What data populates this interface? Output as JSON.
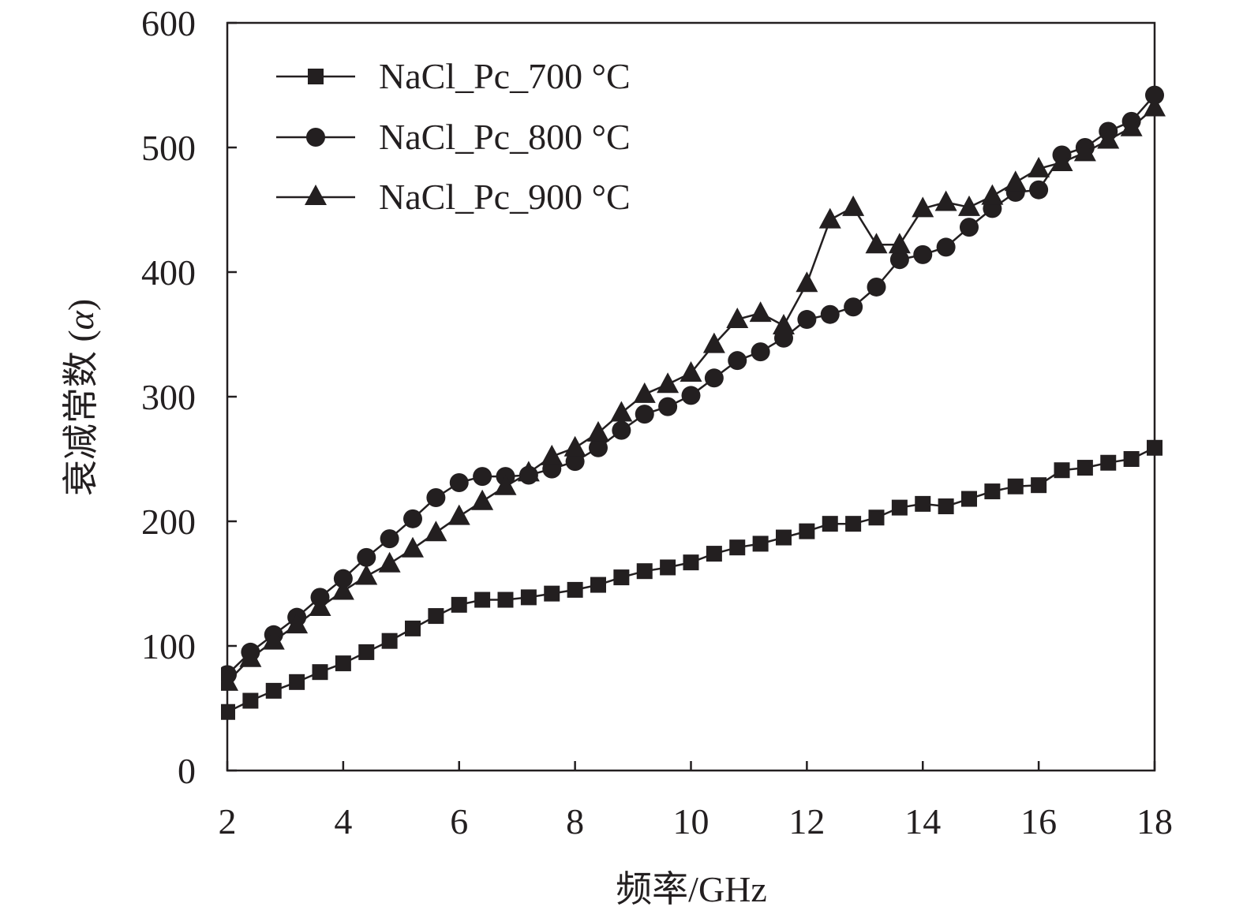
{
  "chart_data": {
    "type": "line",
    "xlabel": "频率/GHz",
    "ylabel": "衰减常数 (",
    "ylabel_symbol": "α",
    "ylabel_close": ")",
    "xlim": [
      2,
      18
    ],
    "ylim": [
      0,
      600
    ],
    "xticks": [
      2,
      4,
      6,
      8,
      10,
      12,
      14,
      16,
      18
    ],
    "yticks": [
      0,
      100,
      200,
      300,
      400,
      500,
      600
    ],
    "grid": false,
    "legend_position": "top-left",
    "series": [
      {
        "name": "NaCl_Pc_700 °C",
        "marker": "square",
        "color": "#231f20",
        "x": [
          2,
          2.4,
          2.8,
          3.2,
          3.6,
          4,
          4.4,
          4.8,
          5.2,
          5.6,
          6,
          6.4,
          6.8,
          7.2,
          7.6,
          8,
          8.4,
          8.8,
          9.2,
          9.6,
          10,
          10.4,
          10.8,
          11.2,
          11.6,
          12,
          12.4,
          12.8,
          13.2,
          13.6,
          14,
          14.4,
          14.8,
          15.2,
          15.6,
          16,
          16.4,
          16.8,
          17.2,
          17.6,
          18
        ],
        "y": [
          47,
          56,
          64,
          71,
          79,
          86,
          95,
          104,
          114,
          124,
          133,
          137,
          137,
          139,
          142,
          145,
          149,
          155,
          160,
          163,
          167,
          174,
          179,
          182,
          187,
          192,
          198,
          198,
          203,
          211,
          214,
          212,
          218,
          224,
          228,
          229,
          241,
          243,
          247,
          250,
          259
        ]
      },
      {
        "name": "NaCl_Pc_800 °C",
        "marker": "circle",
        "color": "#231f20",
        "x": [
          2,
          2.4,
          2.8,
          3.2,
          3.6,
          4,
          4.4,
          4.8,
          5.2,
          5.6,
          6,
          6.4,
          6.8,
          7.2,
          7.6,
          8,
          8.4,
          8.8,
          9.2,
          9.6,
          10,
          10.4,
          10.8,
          11.2,
          11.6,
          12,
          12.4,
          12.8,
          13.2,
          13.6,
          14,
          14.4,
          14.8,
          15.2,
          15.6,
          16,
          16.4,
          16.8,
          17.2,
          17.6,
          18
        ],
        "y": [
          77,
          95,
          109,
          123,
          139,
          154,
          171,
          186,
          202,
          219,
          231,
          236,
          236,
          237,
          242,
          248,
          259,
          273,
          286,
          292,
          301,
          315,
          329,
          336,
          347,
          362,
          366,
          372,
          388,
          410,
          414,
          420,
          436,
          451,
          464,
          466,
          494,
          500,
          513,
          521,
          542
        ]
      },
      {
        "name": "NaCl_Pc_900 °C",
        "marker": "triangle",
        "color": "#231f20",
        "x": [
          2,
          2.4,
          2.8,
          3.2,
          3.6,
          4,
          4.4,
          4.8,
          5.2,
          5.6,
          6,
          6.4,
          6.8,
          7.2,
          7.6,
          8,
          8.4,
          8.8,
          9.2,
          9.6,
          10,
          10.4,
          10.8,
          11.2,
          11.6,
          12,
          12.4,
          12.8,
          13.2,
          13.6,
          14,
          14.4,
          14.8,
          15.2,
          15.6,
          16,
          16.4,
          16.8,
          17.2,
          17.6,
          18
        ],
        "y": [
          71,
          90,
          104,
          117,
          131,
          144,
          156,
          166,
          178,
          191,
          204,
          216,
          228,
          239,
          252,
          259,
          271,
          287,
          302,
          310,
          319,
          342,
          362,
          367,
          357,
          391,
          442,
          452,
          422,
          422,
          451,
          456,
          452,
          461,
          472,
          483,
          488,
          496,
          506,
          516,
          532
        ]
      }
    ]
  }
}
